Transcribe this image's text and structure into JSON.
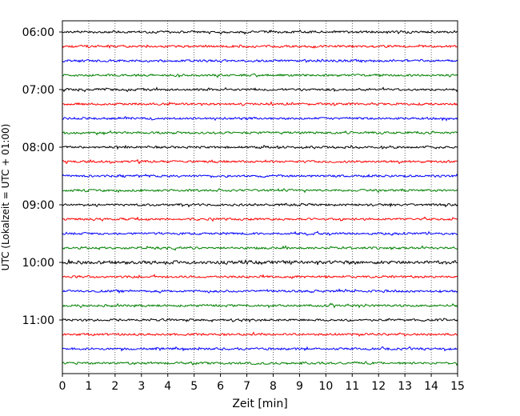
{
  "chart_data": {
    "type": "line",
    "xlabel": "Zeit  [min]",
    "ylabel": "UTC (Lokalzeit = UTC + 01:00)",
    "xlim": [
      0,
      15
    ],
    "x_ticks": [
      "0",
      "1",
      "2",
      "3",
      "4",
      "5",
      "6",
      "7",
      "8",
      "9",
      "10",
      "11",
      "12",
      "13",
      "14",
      "15"
    ],
    "y_ticks": [
      "06:00",
      "07:00",
      "08:00",
      "09:00",
      "10:00",
      "11:00"
    ],
    "grid": "vertical dotted",
    "trace_interval_min": 15,
    "traces_start": "06:00",
    "trace_count": 24,
    "colors": [
      "#000000",
      "#ff0000",
      "#0000ff",
      "#008000"
    ]
  }
}
